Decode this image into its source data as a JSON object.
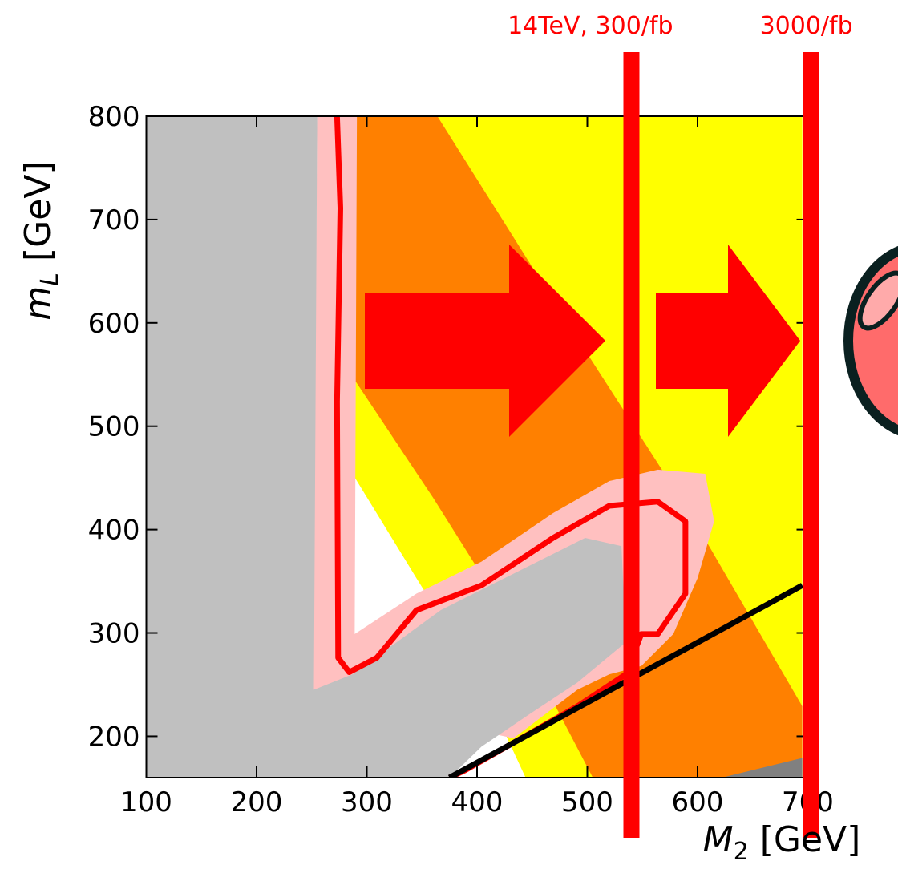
{
  "chart_data": {
    "type": "region",
    "xlim": [
      100,
      700
    ],
    "ylim": [
      160,
      800
    ],
    "xticks": [
      100,
      200,
      300,
      400,
      500,
      600,
      700
    ],
    "yticks": [
      200,
      300,
      400,
      500,
      600,
      700,
      800
    ],
    "x_label": {
      "symbol": "M",
      "subscript": "2",
      "unit": "[GeV]"
    },
    "y_label": {
      "symbol": "m",
      "subscript": "L",
      "unit": "[GeV]"
    },
    "regions": [
      {
        "color": "#ffff00",
        "x": [
          287,
          287,
          345,
          404,
          444,
          695,
          695
        ],
        "y": [
          800,
          454,
          353,
          252,
          160,
          160,
          800
        ]
      },
      {
        "color": "#ff8000",
        "x": [
          287,
          287,
          360,
          433,
          505,
          695,
          695,
          593,
          476,
          364
        ],
        "y": [
          800,
          548,
          431,
          307,
          160,
          160,
          229,
          416,
          610,
          800
        ]
      },
      {
        "color": "#808080",
        "x": [
          695,
          622,
          695
        ],
        "y": [
          179,
          160,
          160
        ]
      },
      {
        "color": "#ffc0c0",
        "x": [
          255,
          291,
          289,
          345,
          404,
          469,
          520,
          564,
          607,
          615,
          600,
          578,
          549,
          520,
          491,
          433,
          251
        ],
        "y": [
          800,
          800,
          299,
          338,
          369,
          416,
          447,
          458,
          454,
          408,
          353,
          299,
          268,
          260,
          245,
          198,
          241
        ]
      },
      {
        "color": "#c0c0c0",
        "x": [
          100,
          255,
          252,
          287,
          367,
          440,
          498,
          531,
          535,
          491,
          447,
          404,
          375,
          100
        ],
        "y": [
          800,
          800,
          245,
          260,
          322,
          361,
          392,
          384,
          291,
          252,
          221,
          190,
          160,
          160
        ]
      }
    ],
    "lines": [
      {
        "color": "#ff0000",
        "x": [
          273,
          276,
          273,
          274,
          284,
          309,
          345,
          404,
          469,
          520,
          564,
          589,
          589,
          564,
          549,
          535,
          491,
          440,
          389,
          375
        ],
        "y": [
          800,
          711,
          524,
          276,
          262,
          276,
          322,
          346,
          392,
          423,
          427,
          408,
          338,
          299,
          299,
          260,
          229,
          198,
          167,
          160
        ]
      },
      {
        "color": "#000000",
        "x": [
          375,
          695
        ],
        "y": [
          160,
          346
        ]
      }
    ],
    "vlines": [
      {
        "x": 540,
        "label": "14TeV, 300/fb",
        "color": "#ff0000"
      },
      {
        "x": 703,
        "label": "3000/fb",
        "color": "#ff0000"
      }
    ]
  }
}
